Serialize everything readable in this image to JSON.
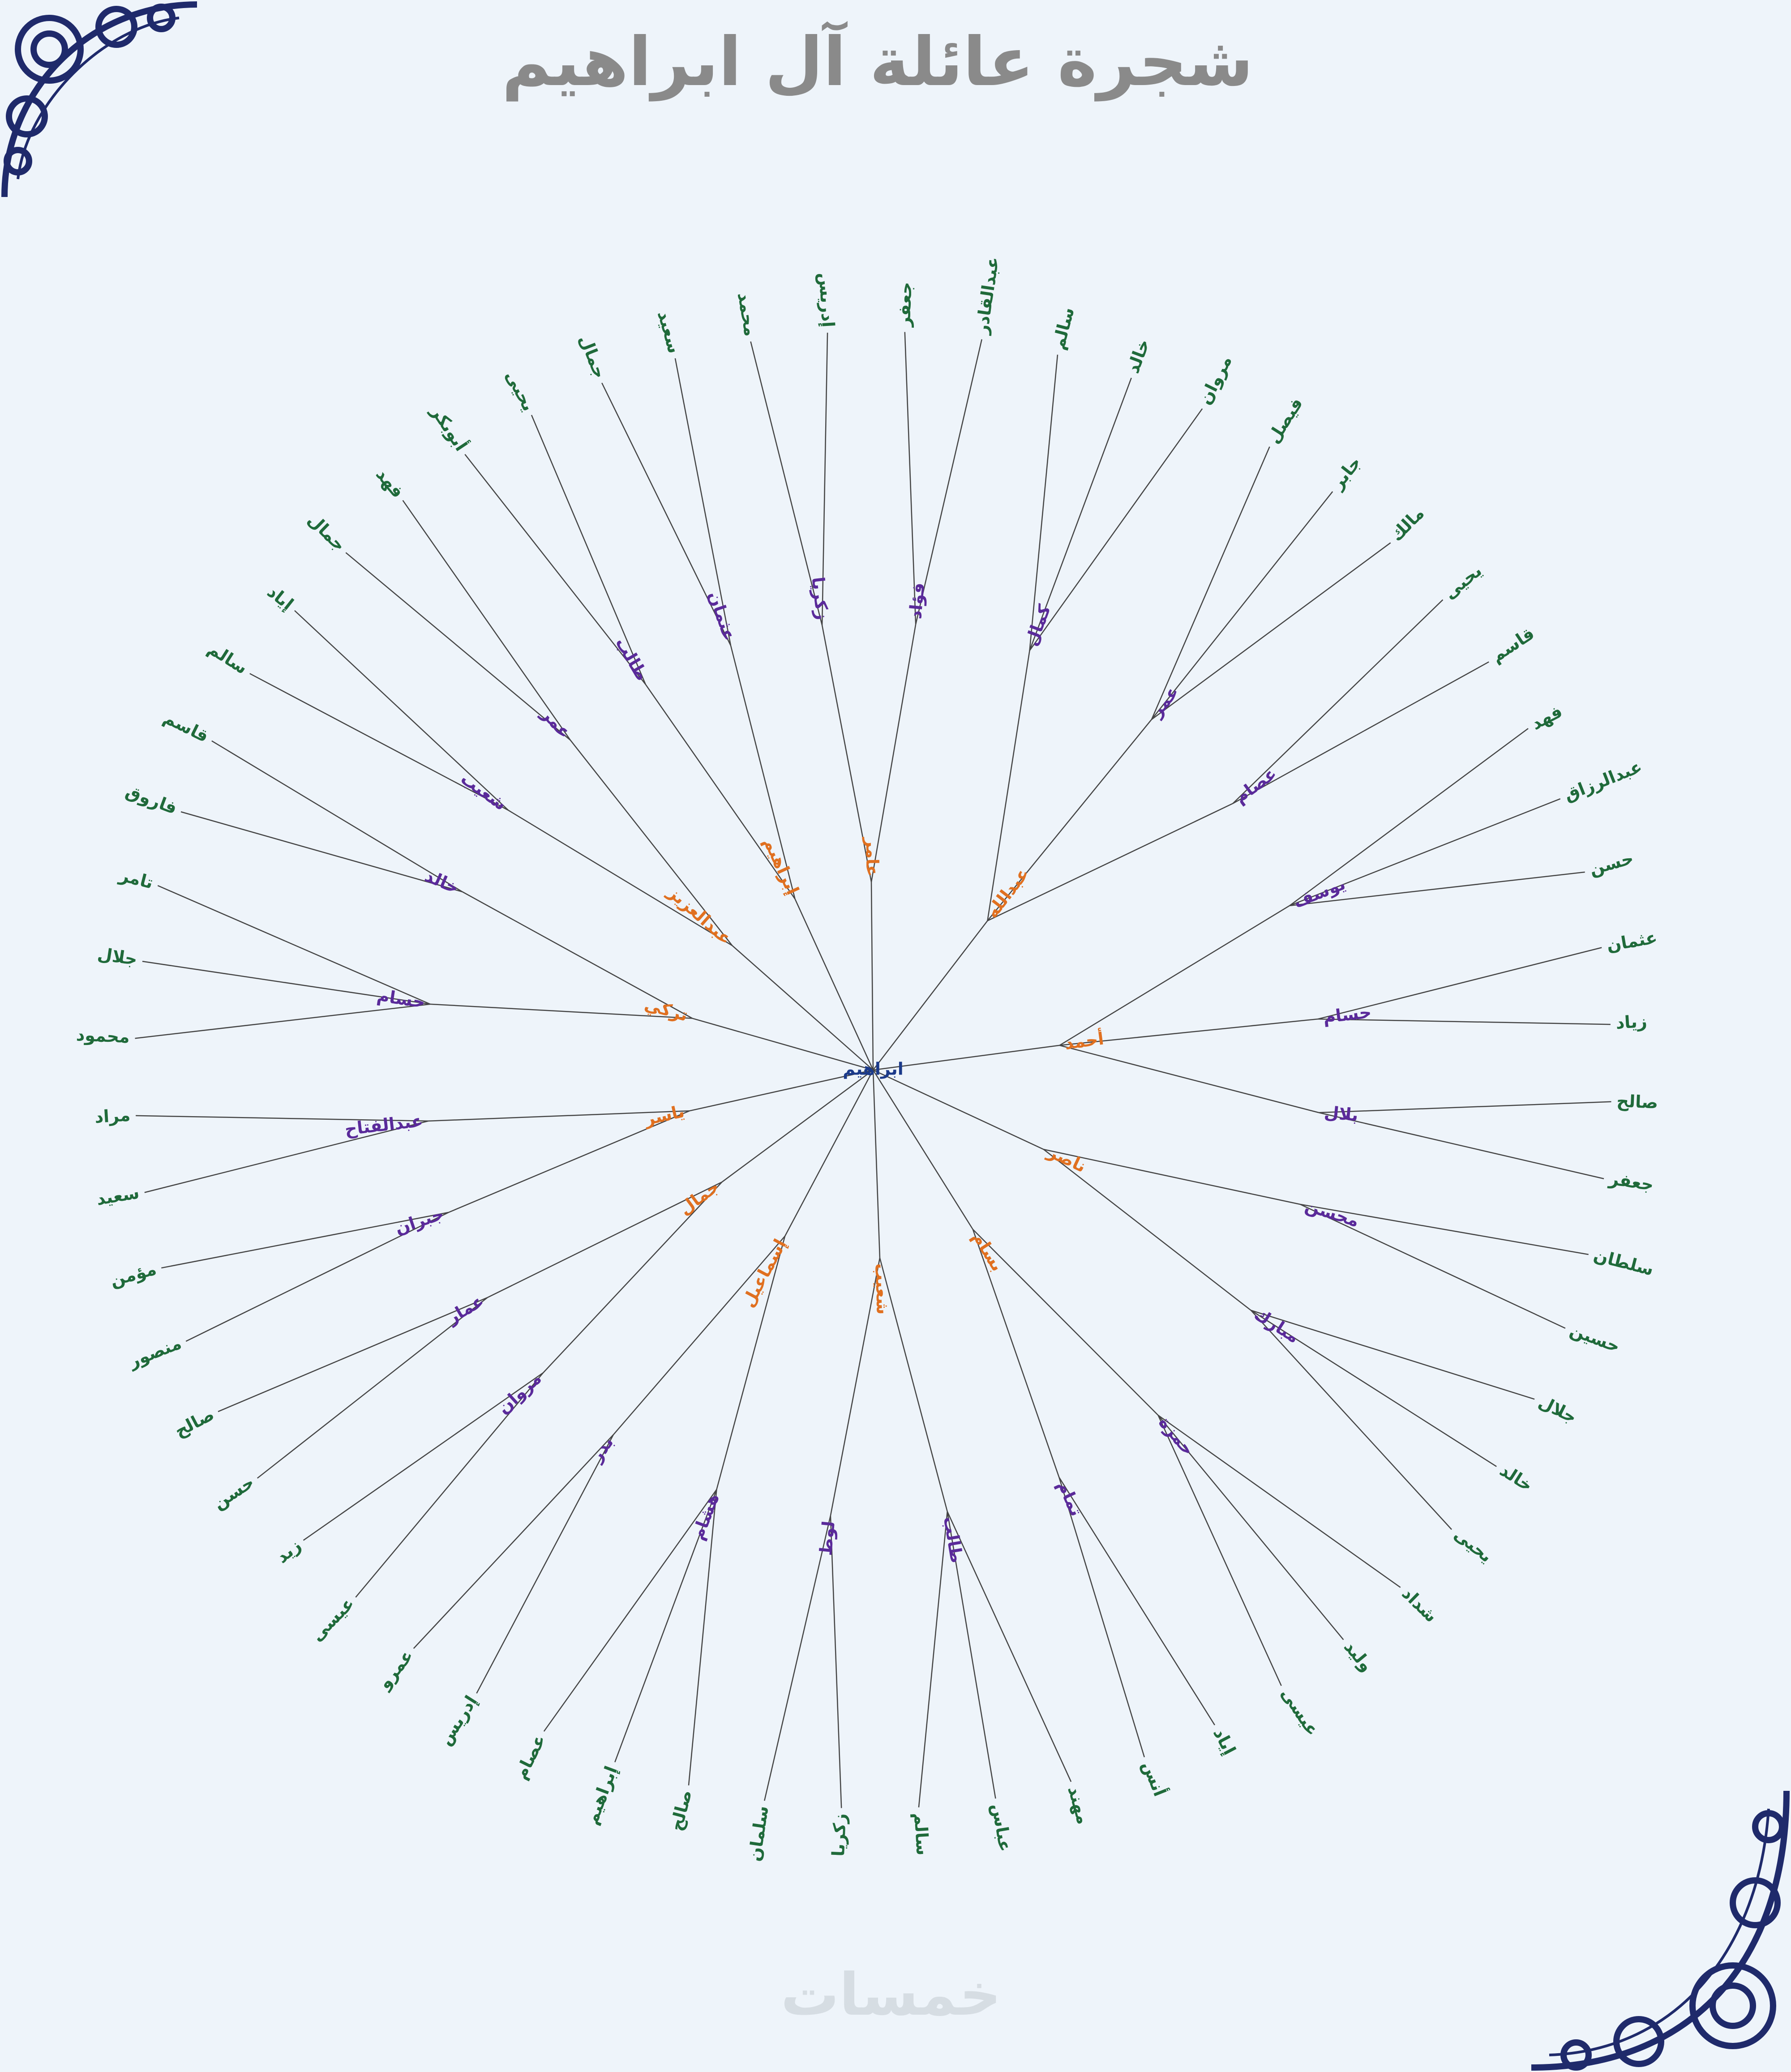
{
  "title": "شجرة عائلة آل ابراهيم",
  "watermark": "خمسات",
  "level_colors": [
    "#1b3a8a",
    "#e07020",
    "#5a2a9a",
    "#1f6a3a",
    "#c8202a"
  ],
  "tree": {
    "name": "ابراهيم",
    "children": [
      {
        "name": "عبدالله",
        "children": [
          {
            "name": "كمال",
            "children": [
              {
                "name": "سالم"
              },
              {
                "name": "خالد"
              },
              {
                "name": "مروان"
              }
            ]
          },
          {
            "name": "عمر",
            "children": [
              {
                "name": "فيصل"
              },
              {
                "name": "جابر"
              },
              {
                "name": "مالك"
              }
            ]
          },
          {
            "name": "عصام",
            "children": [
              {
                "name": "يحيى"
              },
              {
                "name": "قاسم"
              }
            ]
          }
        ]
      },
      {
        "name": "أحمد",
        "children": [
          {
            "name": "يوسف",
            "children": [
              {
                "name": "فهد"
              },
              {
                "name": "عبدالرزاق"
              },
              {
                "name": "حسن"
              }
            ]
          },
          {
            "name": "حسام",
            "children": [
              {
                "name": "عثمان"
              },
              {
                "name": "زياد"
              }
            ]
          },
          {
            "name": "بلال",
            "children": [
              {
                "name": "صالح"
              },
              {
                "name": "جعفر"
              }
            ]
          }
        ]
      },
      {
        "name": "ناصر",
        "children": [
          {
            "name": "محسن",
            "children": [
              {
                "name": "سلطان"
              },
              {
                "name": "حسين"
              }
            ]
          },
          {
            "name": "مبارك",
            "children": [
              {
                "name": "جلال"
              },
              {
                "name": "خالد"
              },
              {
                "name": "يحيى"
              }
            ]
          }
        ]
      },
      {
        "name": "بسام",
        "children": [
          {
            "name": "حمزة",
            "children": [
              {
                "name": "شداد"
              },
              {
                "name": "وليد"
              },
              {
                "name": "عيسى"
              }
            ]
          },
          {
            "name": "تمام",
            "children": [
              {
                "name": "إياد"
              },
              {
                "name": "أنس"
              }
            ]
          }
        ]
      },
      {
        "name": "شعيب",
        "children": [
          {
            "name": "طالب",
            "children": [
              {
                "name": "مهند"
              },
              {
                "name": "عباس"
              },
              {
                "name": "سالم"
              }
            ]
          },
          {
            "name": "لوط",
            "children": [
              {
                "name": "زكريا"
              },
              {
                "name": "سلمان"
              }
            ]
          }
        ]
      },
      {
        "name": "إسماعيل",
        "children": [
          {
            "name": "هشام",
            "children": [
              {
                "name": "صالح"
              },
              {
                "name": "إبراهيم"
              },
              {
                "name": "عصام"
              }
            ]
          },
          {
            "name": "بدر",
            "children": [
              {
                "name": "إدريس"
              },
              {
                "name": "عمرو"
              }
            ]
          }
        ]
      },
      {
        "name": "جمال",
        "children": [
          {
            "name": "مروان",
            "children": [
              {
                "name": "عيسى"
              },
              {
                "name": "زيد"
              }
            ]
          },
          {
            "name": "عمار",
            "children": [
              {
                "name": "حسن"
              },
              {
                "name": "صالح"
              }
            ]
          }
        ]
      },
      {
        "name": "ياسر",
        "children": [
          {
            "name": "جبران",
            "children": [
              {
                "name": "منصور"
              },
              {
                "name": "مؤمن"
              }
            ]
          },
          {
            "name": "عبدالفتاح",
            "children": [
              {
                "name": "سعيد"
              },
              {
                "name": "مراد"
              }
            ]
          }
        ]
      },
      {
        "name": "تركي",
        "children": [
          {
            "name": "حسام",
            "children": [
              {
                "name": "محمود"
              },
              {
                "name": "جلال"
              },
              {
                "name": "تامر"
              }
            ]
          },
          {
            "name": "خالد",
            "children": [
              {
                "name": "فاروق"
              },
              {
                "name": "قاسم"
              }
            ]
          }
        ]
      },
      {
        "name": "عبدالعزيز",
        "children": [
          {
            "name": "شعيب",
            "children": [
              {
                "name": "سالم"
              },
              {
                "name": "إياد"
              }
            ]
          },
          {
            "name": "عمر",
            "children": [
              {
                "name": "جمال"
              },
              {
                "name": "فهد"
              }
            ]
          }
        ]
      },
      {
        "name": "إبراهيم",
        "children": [
          {
            "name": "طالب",
            "children": [
              {
                "name": "أبوبكر"
              },
              {
                "name": "يحيى"
              }
            ]
          },
          {
            "name": "عثمان",
            "children": [
              {
                "name": "جمال"
              },
              {
                "name": "سعيد"
              }
            ]
          }
        ]
      },
      {
        "name": "عامر",
        "children": [
          {
            "name": "زكريا",
            "children": [
              {
                "name": "محمد"
              },
              {
                "name": "إدريس"
              }
            ]
          },
          {
            "name": "فؤاد",
            "children": [
              {
                "name": "جعفر"
              },
              {
                "name": "عبدالقادر"
              }
            ]
          }
        ]
      }
    ]
  }
}
